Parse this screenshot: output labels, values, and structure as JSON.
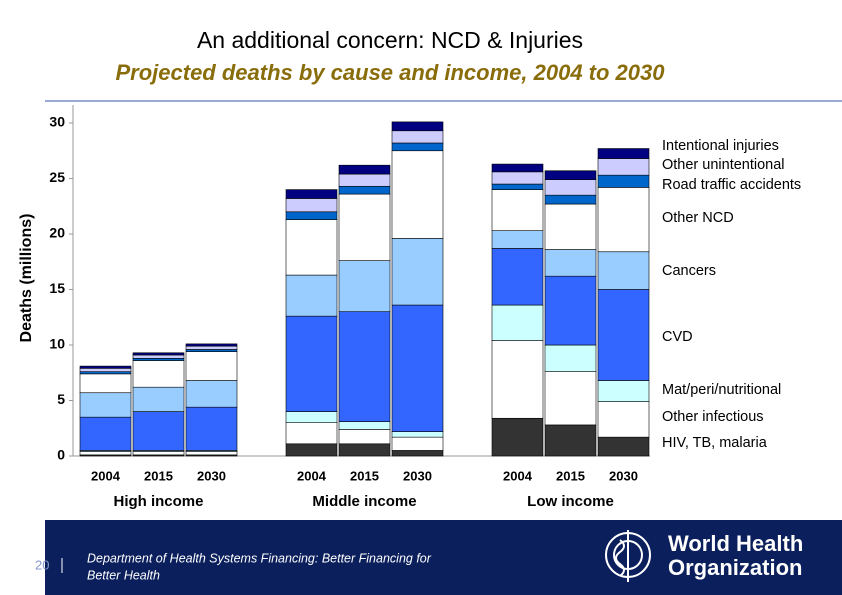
{
  "chart_data": {
    "type": "stacked_bar",
    "title": "An additional concern: NCD & Injuries",
    "subtitle": "Projected deaths by cause and income, 2004 to 2030",
    "y_label": "Deaths (millions)",
    "categories": [
      "2004",
      "2015",
      "2030",
      "2004",
      "2015",
      "2030",
      "2004",
      "2015",
      "2030"
    ],
    "groups": [
      "High income",
      "Middle income",
      "Low income"
    ],
    "ylim": [
      0,
      30
    ],
    "yticks": [
      0,
      5,
      10,
      15,
      20,
      25,
      30
    ],
    "series": [
      {
        "name": "HIV, TB, malaria",
        "color": "#333333",
        "values": [
          0.1,
          0.1,
          0.1,
          1.1,
          1.1,
          0.5,
          3.4,
          2.8,
          1.7
        ]
      },
      {
        "name": "Other infectious",
        "color": "#ffffff",
        "values": [
          0.3,
          0.3,
          0.3,
          1.9,
          1.3,
          1.2,
          7.0,
          4.8,
          3.2
        ]
      },
      {
        "name": "Mat/peri/nutritional",
        "color": "#ccffff",
        "values": [
          0.1,
          0.1,
          0.1,
          1.0,
          0.7,
          0.5,
          3.2,
          2.4,
          1.9
        ]
      },
      {
        "name": "CVD",
        "color": "#3366ff",
        "values": [
          3.0,
          3.5,
          3.9,
          8.6,
          9.9,
          11.4,
          5.1,
          6.2,
          8.2
        ]
      },
      {
        "name": "Cancers",
        "color": "#99ccff",
        "values": [
          2.2,
          2.2,
          2.4,
          3.7,
          4.6,
          6.0,
          1.6,
          2.4,
          3.4
        ]
      },
      {
        "name": "Other NCD",
        "color": "#ffffff",
        "values": [
          1.7,
          2.4,
          2.6,
          5.0,
          6.0,
          7.9,
          3.7,
          4.1,
          5.8
        ]
      },
      {
        "name": "Road traffic accidents",
        "color": "#0066cc",
        "values": [
          0.2,
          0.2,
          0.2,
          0.7,
          0.7,
          0.7,
          0.5,
          0.8,
          1.1
        ]
      },
      {
        "name": "Other unintentional",
        "color": "#ccccff",
        "values": [
          0.3,
          0.3,
          0.3,
          1.2,
          1.1,
          1.1,
          1.1,
          1.4,
          1.5
        ]
      },
      {
        "name": "Intentional injuries",
        "color": "#000080",
        "values": [
          0.2,
          0.2,
          0.2,
          0.8,
          0.8,
          0.8,
          0.7,
          0.8,
          0.9
        ]
      }
    ]
  },
  "footer": {
    "page": "20",
    "text": [
      "Department of Health Systems Financing: Better Financing for",
      "Better Health"
    ],
    "logo": [
      "World Health",
      "Organization"
    ]
  }
}
